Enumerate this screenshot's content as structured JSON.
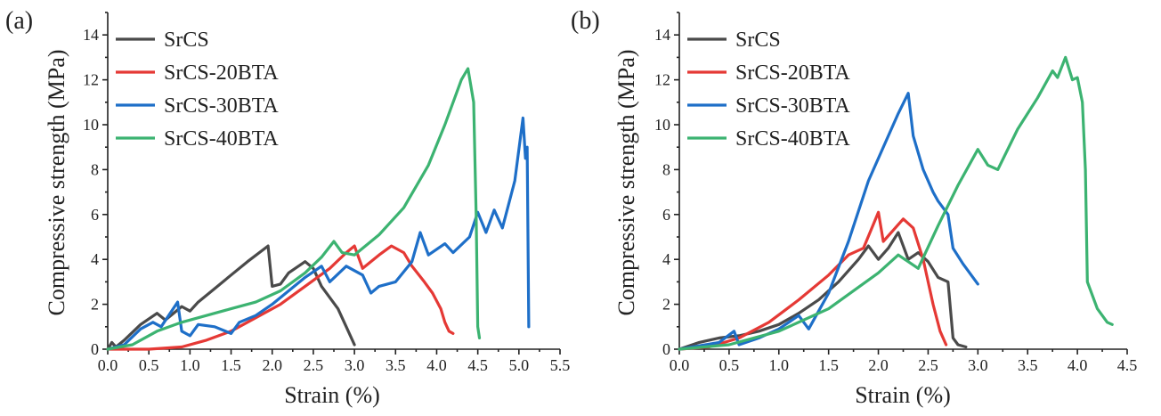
{
  "chart_data": [
    {
      "type": "line",
      "panel_label": "(a)",
      "xlabel": "Strain (%)",
      "ylabel": "Compressive strength (MPa)",
      "xlim": [
        0,
        5.5
      ],
      "ylim": [
        0,
        15
      ],
      "xticks": [
        "0.0",
        "0.5",
        "1.0",
        "1.5",
        "2.0",
        "2.5",
        "3.0",
        "3.5",
        "4.0",
        "4.5",
        "5.0",
        "5.5"
      ],
      "yticks": [
        "0",
        "2",
        "4",
        "6",
        "8",
        "10",
        "12",
        "14"
      ],
      "legend_position": "top-left",
      "series": [
        {
          "name": "SrCS",
          "color": "#4a4a4a",
          "points": [
            [
              0,
              0
            ],
            [
              0.05,
              0.3
            ],
            [
              0.1,
              0.1
            ],
            [
              0.2,
              0.4
            ],
            [
              0.4,
              1.1
            ],
            [
              0.6,
              1.6
            ],
            [
              0.7,
              1.3
            ],
            [
              0.8,
              1.6
            ],
            [
              0.9,
              1.9
            ],
            [
              1.0,
              1.7
            ],
            [
              1.1,
              2.1
            ],
            [
              1.3,
              2.7
            ],
            [
              1.5,
              3.3
            ],
            [
              1.7,
              3.9
            ],
            [
              1.95,
              4.6
            ],
            [
              2.0,
              2.8
            ],
            [
              2.1,
              2.9
            ],
            [
              2.2,
              3.4
            ],
            [
              2.4,
              3.9
            ],
            [
              2.5,
              3.6
            ],
            [
              2.6,
              2.8
            ],
            [
              2.8,
              1.8
            ],
            [
              2.9,
              1.0
            ],
            [
              3.0,
              0.2
            ]
          ]
        },
        {
          "name": "SrCS-20BTA",
          "color": "#e53935",
          "points": [
            [
              0,
              0
            ],
            [
              0.5,
              0
            ],
            [
              0.9,
              0.1
            ],
            [
              1.2,
              0.4
            ],
            [
              1.5,
              0.8
            ],
            [
              1.8,
              1.4
            ],
            [
              2.1,
              2.0
            ],
            [
              2.4,
              2.8
            ],
            [
              2.7,
              3.6
            ],
            [
              2.9,
              4.3
            ],
            [
              3.0,
              4.6
            ],
            [
              3.1,
              3.6
            ],
            [
              3.3,
              4.2
            ],
            [
              3.45,
              4.6
            ],
            [
              3.6,
              4.3
            ],
            [
              3.7,
              3.7
            ],
            [
              3.85,
              3.0
            ],
            [
              3.95,
              2.5
            ],
            [
              4.05,
              1.8
            ],
            [
              4.1,
              1.2
            ],
            [
              4.15,
              0.8
            ],
            [
              4.2,
              0.7
            ]
          ]
        },
        {
          "name": "SrCS-30BTA",
          "color": "#1e6fc8",
          "points": [
            [
              0,
              0
            ],
            [
              0.2,
              0.2
            ],
            [
              0.4,
              0.9
            ],
            [
              0.55,
              1.2
            ],
            [
              0.65,
              1.0
            ],
            [
              0.85,
              2.1
            ],
            [
              0.9,
              0.8
            ],
            [
              1.0,
              0.6
            ],
            [
              1.1,
              1.1
            ],
            [
              1.3,
              1.0
            ],
            [
              1.5,
              0.7
            ],
            [
              1.6,
              1.2
            ],
            [
              1.8,
              1.5
            ],
            [
              2.0,
              2.0
            ],
            [
              2.2,
              2.6
            ],
            [
              2.4,
              3.2
            ],
            [
              2.6,
              3.7
            ],
            [
              2.7,
              3.0
            ],
            [
              2.9,
              3.7
            ],
            [
              3.1,
              3.3
            ],
            [
              3.2,
              2.5
            ],
            [
              3.3,
              2.8
            ],
            [
              3.5,
              3.0
            ],
            [
              3.7,
              3.9
            ],
            [
              3.8,
              5.2
            ],
            [
              3.9,
              4.2
            ],
            [
              4.1,
              4.7
            ],
            [
              4.2,
              4.3
            ],
            [
              4.4,
              5.0
            ],
            [
              4.5,
              6.1
            ],
            [
              4.6,
              5.2
            ],
            [
              4.7,
              6.2
            ],
            [
              4.8,
              5.4
            ],
            [
              4.95,
              7.5
            ],
            [
              5.05,
              10.3
            ],
            [
              5.08,
              8.5
            ],
            [
              5.1,
              9.0
            ],
            [
              5.12,
              1.0
            ]
          ]
        },
        {
          "name": "SrCS-40BTA",
          "color": "#3cb371",
          "points": [
            [
              0,
              0
            ],
            [
              0.3,
              0.2
            ],
            [
              0.6,
              0.8
            ],
            [
              0.9,
              1.2
            ],
            [
              1.2,
              1.5
            ],
            [
              1.5,
              1.8
            ],
            [
              1.8,
              2.1
            ],
            [
              2.1,
              2.6
            ],
            [
              2.4,
              3.4
            ],
            [
              2.6,
              4.1
            ],
            [
              2.75,
              4.8
            ],
            [
              2.85,
              4.3
            ],
            [
              3.0,
              4.2
            ],
            [
              3.3,
              5.1
            ],
            [
              3.6,
              6.3
            ],
            [
              3.9,
              8.2
            ],
            [
              4.1,
              10.0
            ],
            [
              4.3,
              12.0
            ],
            [
              4.38,
              12.5
            ],
            [
              4.45,
              11.0
            ],
            [
              4.48,
              6.0
            ],
            [
              4.5,
              1.0
            ],
            [
              4.52,
              0.5
            ]
          ]
        }
      ]
    },
    {
      "type": "line",
      "panel_label": "(b)",
      "xlabel": "Strain (%)",
      "ylabel": "Compressive strength (MPa)",
      "xlim": [
        0,
        4.5
      ],
      "ylim": [
        0,
        15
      ],
      "xticks": [
        "0.0",
        "0.5",
        "1.0",
        "1.5",
        "2.0",
        "2.5",
        "3.0",
        "3.5",
        "4.0",
        "4.5"
      ],
      "yticks": [
        "0",
        "2",
        "4",
        "6",
        "8",
        "10",
        "12",
        "14"
      ],
      "legend_position": "top-left",
      "series": [
        {
          "name": "SrCS",
          "color": "#4a4a4a",
          "points": [
            [
              0,
              0
            ],
            [
              0.2,
              0.3
            ],
            [
              0.4,
              0.5
            ],
            [
              0.6,
              0.6
            ],
            [
              0.8,
              0.8
            ],
            [
              1.0,
              1.1
            ],
            [
              1.2,
              1.6
            ],
            [
              1.4,
              2.2
            ],
            [
              1.6,
              3.0
            ],
            [
              1.8,
              4.0
            ],
            [
              1.9,
              4.6
            ],
            [
              2.0,
              4.0
            ],
            [
              2.1,
              4.5
            ],
            [
              2.2,
              5.2
            ],
            [
              2.3,
              4.0
            ],
            [
              2.4,
              4.3
            ],
            [
              2.5,
              3.9
            ],
            [
              2.6,
              3.2
            ],
            [
              2.7,
              3.0
            ],
            [
              2.75,
              0.5
            ],
            [
              2.8,
              0.2
            ],
            [
              2.88,
              0.1
            ]
          ]
        },
        {
          "name": "SrCS-20BTA",
          "color": "#e53935",
          "points": [
            [
              0,
              0
            ],
            [
              0.3,
              0.1
            ],
            [
              0.6,
              0.5
            ],
            [
              0.9,
              1.2
            ],
            [
              1.2,
              2.2
            ],
            [
              1.5,
              3.3
            ],
            [
              1.7,
              4.2
            ],
            [
              1.85,
              4.5
            ],
            [
              2.0,
              6.1
            ],
            [
              2.05,
              4.8
            ],
            [
              2.15,
              5.3
            ],
            [
              2.25,
              5.8
            ],
            [
              2.35,
              5.4
            ],
            [
              2.45,
              4.0
            ],
            [
              2.55,
              2.0
            ],
            [
              2.62,
              0.8
            ],
            [
              2.68,
              0.2
            ]
          ]
        },
        {
          "name": "SrCS-30BTA",
          "color": "#1e6fc8",
          "points": [
            [
              0,
              0
            ],
            [
              0.4,
              0.3
            ],
            [
              0.55,
              0.8
            ],
            [
              0.6,
              0.2
            ],
            [
              0.8,
              0.5
            ],
            [
              1.0,
              0.9
            ],
            [
              1.2,
              1.5
            ],
            [
              1.3,
              0.9
            ],
            [
              1.5,
              2.5
            ],
            [
              1.7,
              4.8
            ],
            [
              1.9,
              7.5
            ],
            [
              2.1,
              9.5
            ],
            [
              2.2,
              10.5
            ],
            [
              2.3,
              11.4
            ],
            [
              2.35,
              9.5
            ],
            [
              2.45,
              8.0
            ],
            [
              2.55,
              7.0
            ],
            [
              2.6,
              6.6
            ],
            [
              2.7,
              6.0
            ],
            [
              2.75,
              4.5
            ],
            [
              2.85,
              3.8
            ],
            [
              3.0,
              2.9
            ]
          ]
        },
        {
          "name": "SrCS-40BTA",
          "color": "#3cb371",
          "points": [
            [
              0,
              0
            ],
            [
              0.5,
              0.2
            ],
            [
              1.0,
              0.8
            ],
            [
              1.5,
              1.8
            ],
            [
              2.0,
              3.4
            ],
            [
              2.2,
              4.2
            ],
            [
              2.4,
              3.6
            ],
            [
              2.6,
              5.5
            ],
            [
              2.8,
              7.3
            ],
            [
              3.0,
              8.9
            ],
            [
              3.1,
              8.2
            ],
            [
              3.2,
              8.0
            ],
            [
              3.4,
              9.8
            ],
            [
              3.6,
              11.2
            ],
            [
              3.75,
              12.4
            ],
            [
              3.8,
              12.1
            ],
            [
              3.88,
              13.0
            ],
            [
              3.95,
              12.0
            ],
            [
              4.0,
              12.1
            ],
            [
              4.05,
              11.0
            ],
            [
              4.08,
              8.0
            ],
            [
              4.1,
              3.0
            ],
            [
              4.2,
              1.8
            ],
            [
              4.3,
              1.2
            ],
            [
              4.35,
              1.1
            ]
          ]
        }
      ]
    }
  ]
}
